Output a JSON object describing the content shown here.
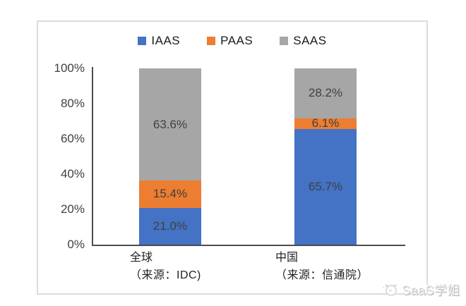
{
  "watermark": {
    "text": "SaaS学姐",
    "icon": "chat-face-logo"
  },
  "chart_data": {
    "type": "bar",
    "stacked": true,
    "title": "",
    "legend_position": "top",
    "grid": false,
    "ylim": [
      0,
      100
    ],
    "ylabel": "",
    "xlabel": "",
    "yticks": [
      "0%",
      "20%",
      "40%",
      "60%",
      "80%",
      "100%"
    ],
    "categories": [
      {
        "name": "全球",
        "source": "（来源：IDC)"
      },
      {
        "name": "中国",
        "source": "（来源：信通院）"
      }
    ],
    "series": [
      {
        "name": "IAAS",
        "color": "#4472C4",
        "values": [
          21.0,
          65.7
        ],
        "data_labels": [
          "21.0%",
          "65.7%"
        ]
      },
      {
        "name": "PAAS",
        "color": "#ED7D31",
        "values": [
          15.4,
          6.1
        ],
        "data_labels": [
          "15.4%",
          "6.1%"
        ]
      },
      {
        "name": "SAAS",
        "color": "#A6A6A6",
        "values": [
          63.6,
          28.2
        ],
        "data_labels": [
          "63.6%",
          "28.2%"
        ]
      }
    ]
  }
}
